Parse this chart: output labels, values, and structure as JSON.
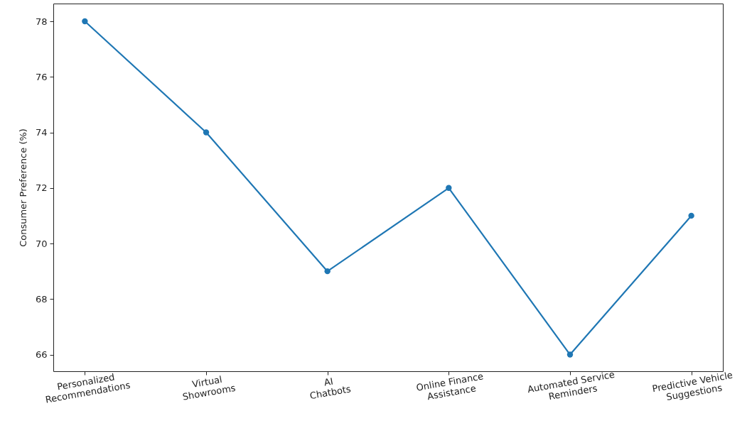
{
  "chart_data": {
    "type": "line",
    "ylabel": "Consumer Preference (%)",
    "categories": [
      "Personalized\nRecommendations",
      "Virtual\nShowrooms",
      "AI\nChatbots",
      "Online Finance\nAssistance",
      "Automated Service\nReminders",
      "Predictive Vehicle\nSuggestions"
    ],
    "series": [
      {
        "color": "#1f77b4",
        "values": [
          78,
          74,
          69,
          72,
          66,
          71
        ]
      }
    ],
    "ylim": [
      65.4,
      78.64
    ],
    "yticks": [
      66,
      68,
      70,
      72,
      74,
      76,
      78
    ],
    "marker": "circle",
    "line_style": "solid"
  }
}
